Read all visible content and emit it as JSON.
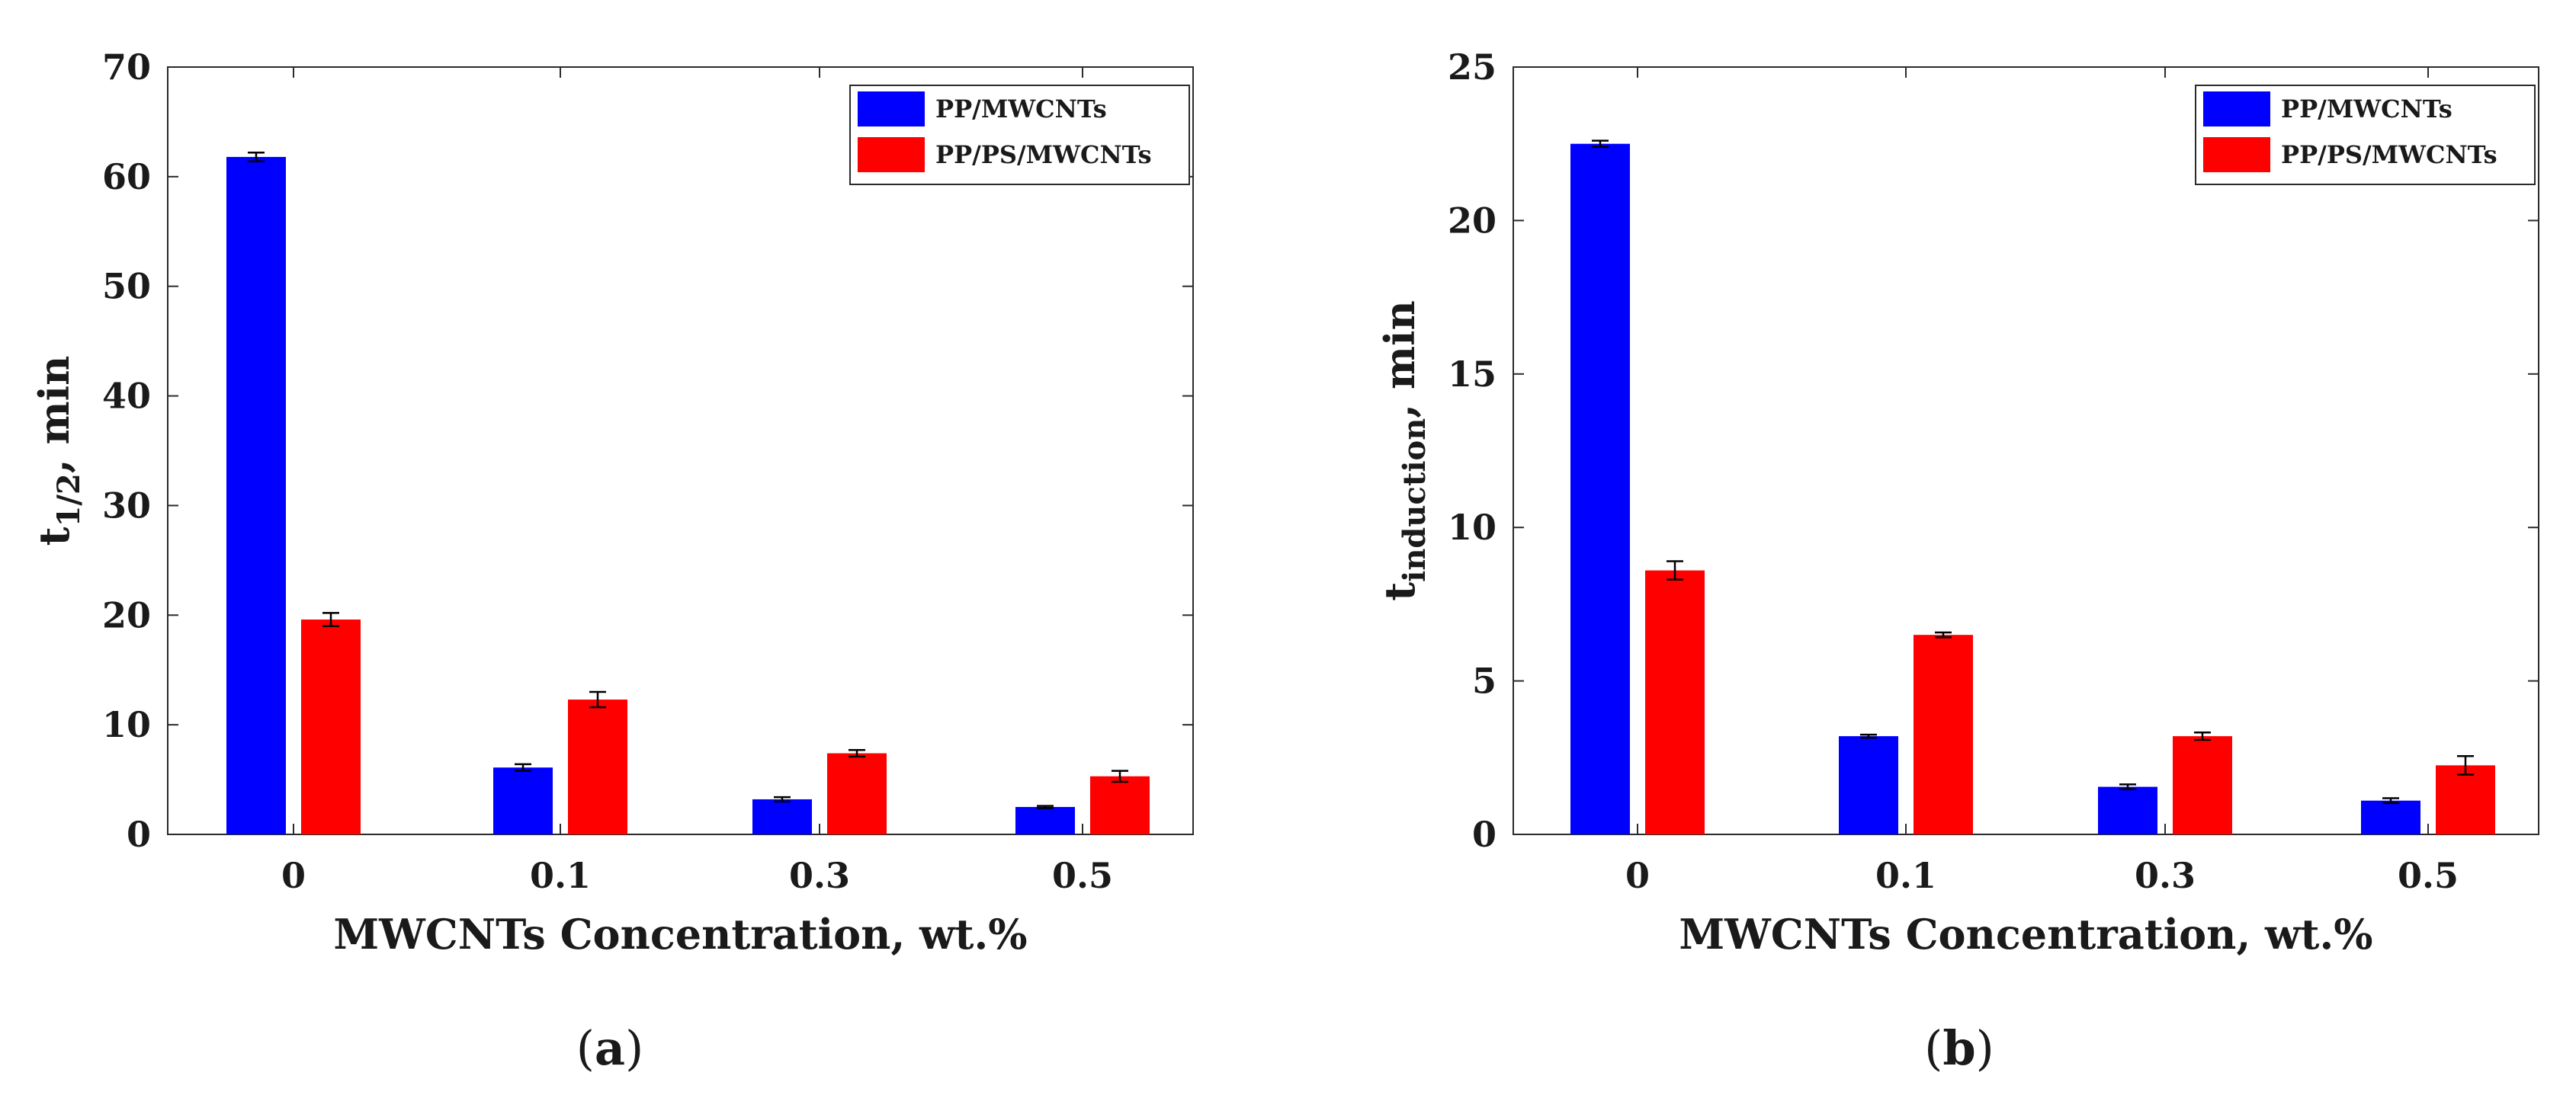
{
  "chart_data": [
    {
      "type": "bar",
      "panel_label": "a",
      "categories": [
        "0",
        "0.1",
        "0.3",
        "0.5"
      ],
      "series": [
        {
          "name": "PP/MWCNTs",
          "color": "#0000ff",
          "values": [
            61.8,
            6.1,
            3.2,
            2.5
          ],
          "errors": [
            0.4,
            0.3,
            0.2,
            0.1
          ]
        },
        {
          "name": "PP/PS/MWCNTs",
          "color": "#ff0000",
          "values": [
            19.6,
            12.3,
            7.4,
            5.3
          ],
          "errors": [
            0.6,
            0.7,
            0.3,
            0.5
          ]
        }
      ],
      "ylim": [
        0,
        70
      ],
      "yticks": [
        0,
        10,
        20,
        30,
        40,
        50,
        60,
        70
      ],
      "xlabel": "MWCNTs Concentration, wt.%",
      "ylabel": {
        "base": "t",
        "sub": "1/2",
        "suffix": ", min"
      },
      "legend": "top-right"
    },
    {
      "type": "bar",
      "panel_label": "b",
      "categories": [
        "0",
        "0.1",
        "0.3",
        "0.5"
      ],
      "series": [
        {
          "name": "PP/MWCNTs",
          "color": "#0000ff",
          "values": [
            22.5,
            3.2,
            1.55,
            1.1
          ],
          "errors": [
            0.1,
            0.05,
            0.08,
            0.08
          ]
        },
        {
          "name": "PP/PS/MWCNTs",
          "color": "#ff0000",
          "values": [
            8.6,
            6.5,
            3.2,
            2.25
          ],
          "errors": [
            0.3,
            0.08,
            0.12,
            0.3
          ]
        }
      ],
      "ylim": [
        0,
        25
      ],
      "yticks": [
        0,
        5,
        10,
        15,
        20,
        25
      ],
      "xlabel": "MWCNTs Concentration, wt.%",
      "ylabel": {
        "base": "t",
        "sub": "induction",
        "suffix": ", min"
      },
      "legend": "top-right"
    }
  ]
}
